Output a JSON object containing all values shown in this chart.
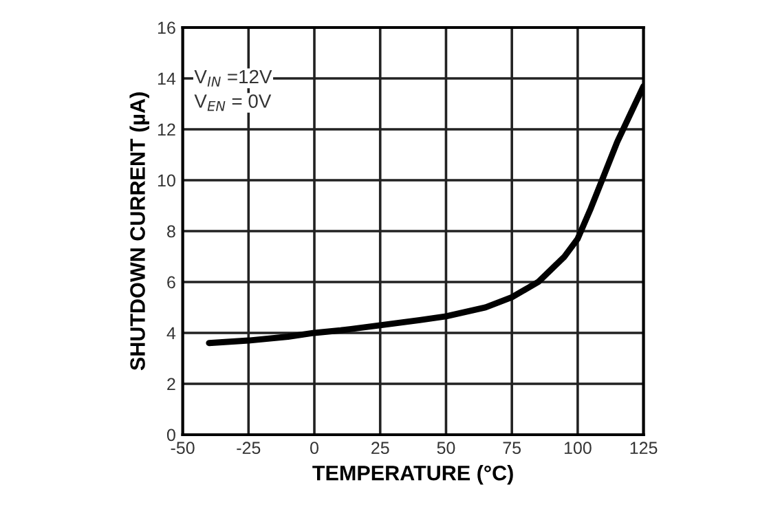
{
  "chart_data": {
    "type": "line",
    "xlabel": "TEMPERATURE (°C)",
    "ylabel": "SHUTDOWN CURRENT (µA)",
    "x": [
      -40,
      -25,
      -10,
      0,
      10,
      25,
      40,
      50,
      65,
      75,
      85,
      90,
      95,
      100,
      105,
      110,
      115,
      120,
      125
    ],
    "series": [
      {
        "color": "#000000",
        "values": [
          3.6,
          3.7,
          3.85,
          4.0,
          4.1,
          4.3,
          4.5,
          4.65,
          5.0,
          5.4,
          6.0,
          6.5,
          7.0,
          7.7,
          8.9,
          10.2,
          11.5,
          12.6,
          13.7
        ]
      }
    ],
    "xlim": [
      -50,
      125
    ],
    "xticks": [
      -50,
      -25,
      0,
      25,
      50,
      75,
      100,
      125
    ],
    "ylim": [
      0,
      16
    ],
    "yticks": [
      0,
      2,
      4,
      6,
      8,
      10,
      12,
      14,
      16
    ],
    "grid": true,
    "marker": "none",
    "line_style": "solid",
    "annotations": [
      "V$_{IN}$ =12V",
      "V$_{EN}$ = 0V"
    ]
  }
}
